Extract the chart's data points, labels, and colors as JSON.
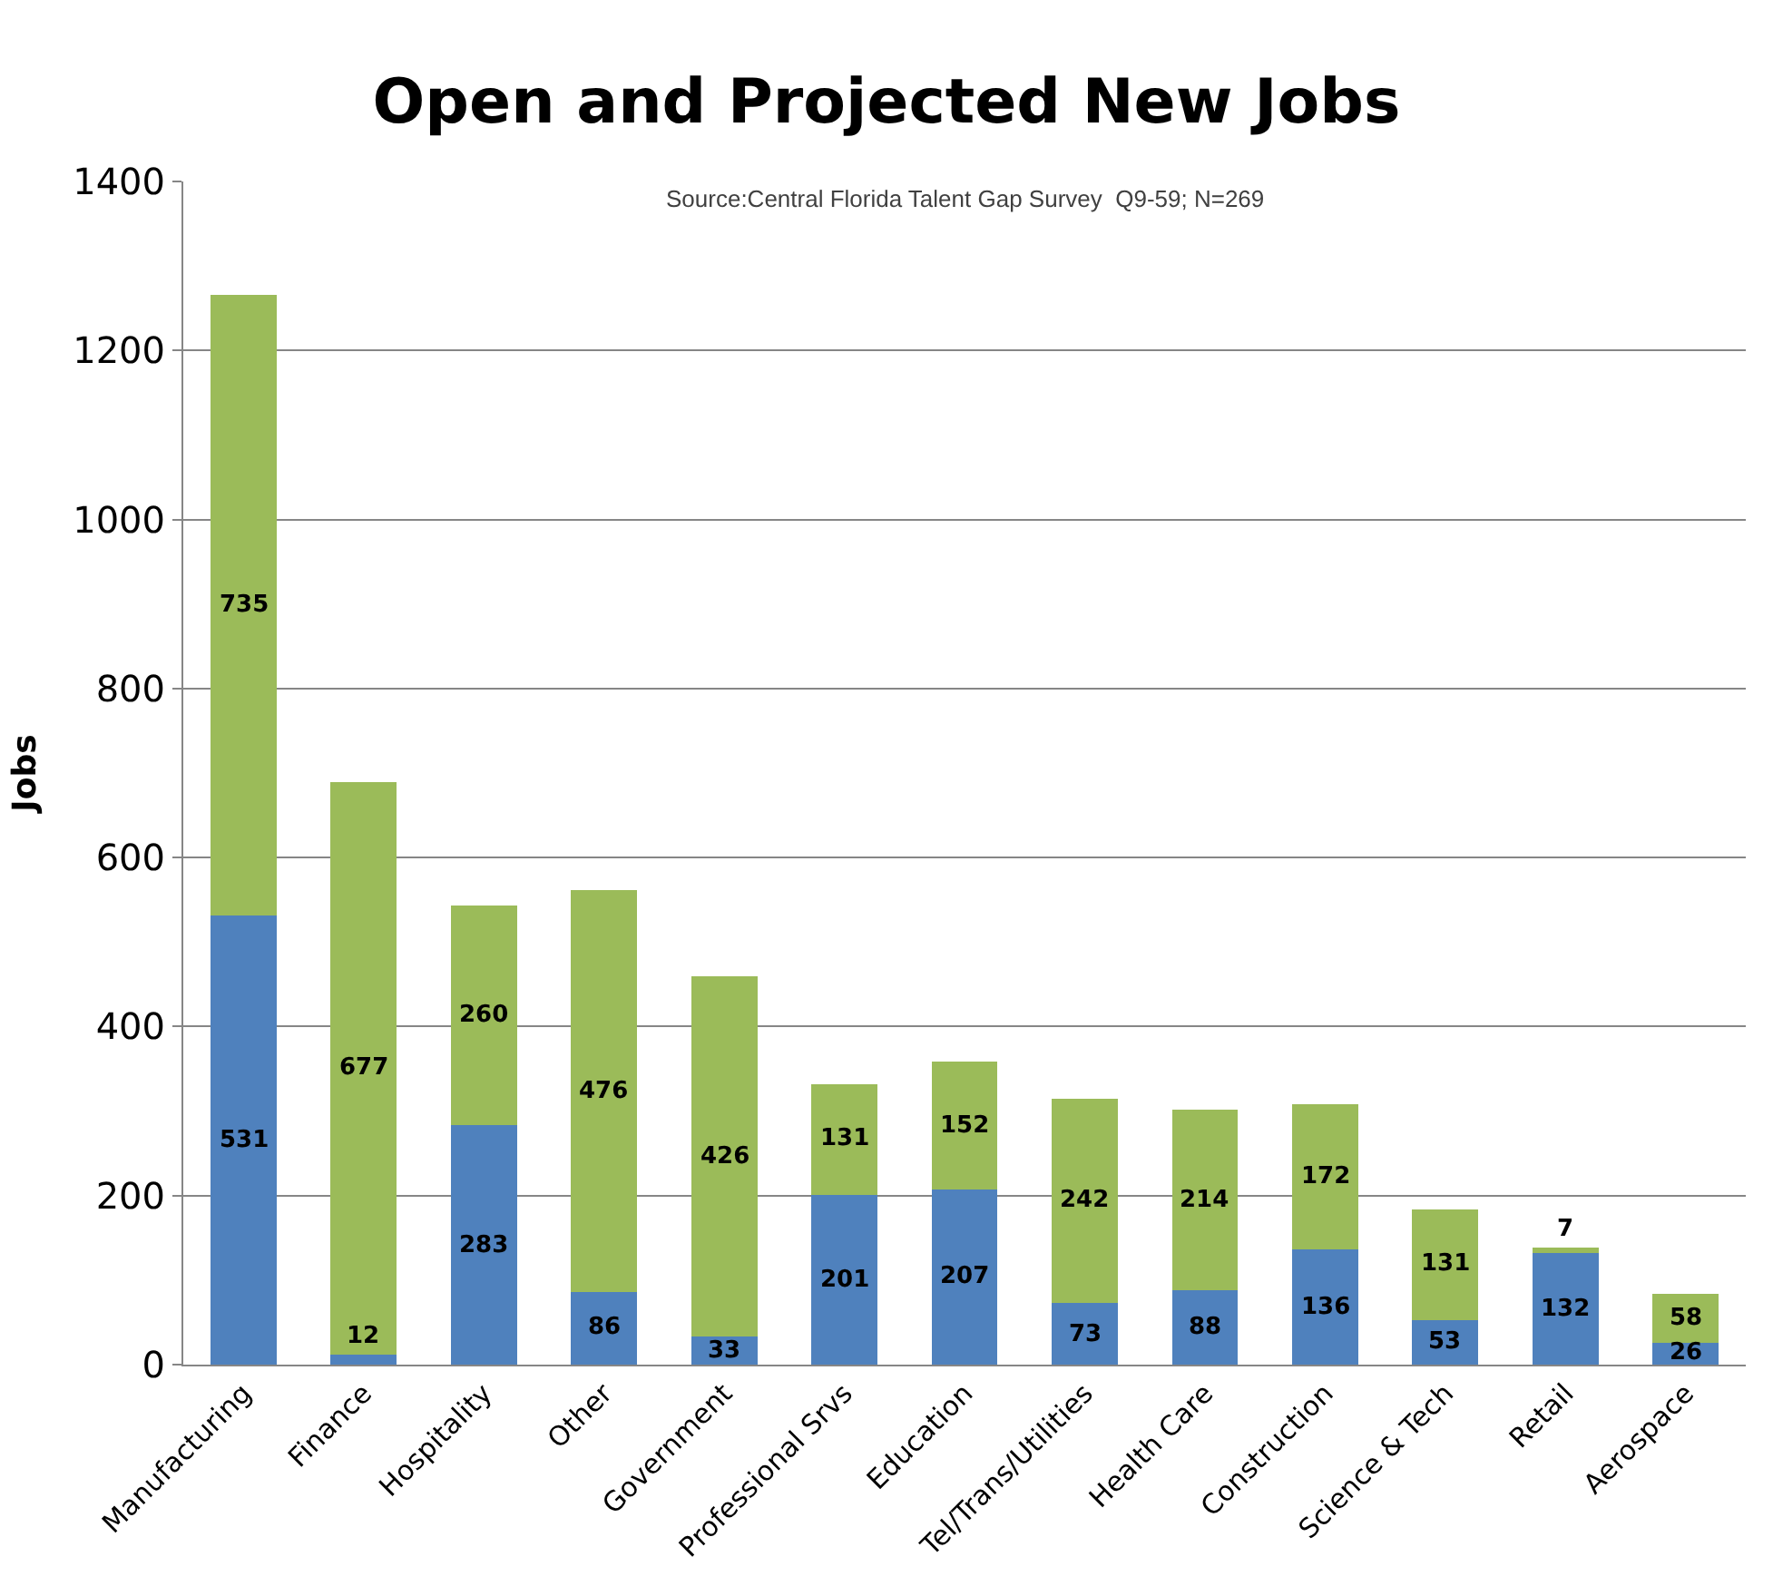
{
  "chart_data": {
    "type": "bar",
    "title": "Open and Projected New Jobs",
    "ylabel": "Jobs",
    "annotations": [
      "Source:Central Florida Talent Gap Survey  Q9-59; N=269"
    ],
    "categories": [
      "Manufacturing",
      "Finance",
      "Hospitality",
      "Other",
      "Government",
      "Professional Srvs",
      "Education",
      "Tel/Trans/Utilities",
      "Health Care",
      "Construction",
      "Science & Tech",
      "Retail",
      "Aerospace"
    ],
    "stacked": true,
    "data_labels": true,
    "grid": "y",
    "ylim": [
      0,
      1400
    ],
    "yticks": [
      0,
      200,
      400,
      600,
      800,
      1000,
      1200,
      1400
    ],
    "series": [
      {
        "color": "#4f81bd",
        "values": [
          531,
          12,
          283,
          86,
          33,
          201,
          207,
          73,
          88,
          136,
          53,
          132,
          26
        ]
      },
      {
        "color": "#9bbb59",
        "values": [
          735,
          677,
          260,
          476,
          426,
          131,
          152,
          242,
          214,
          172,
          131,
          7,
          58
        ]
      }
    ]
  }
}
